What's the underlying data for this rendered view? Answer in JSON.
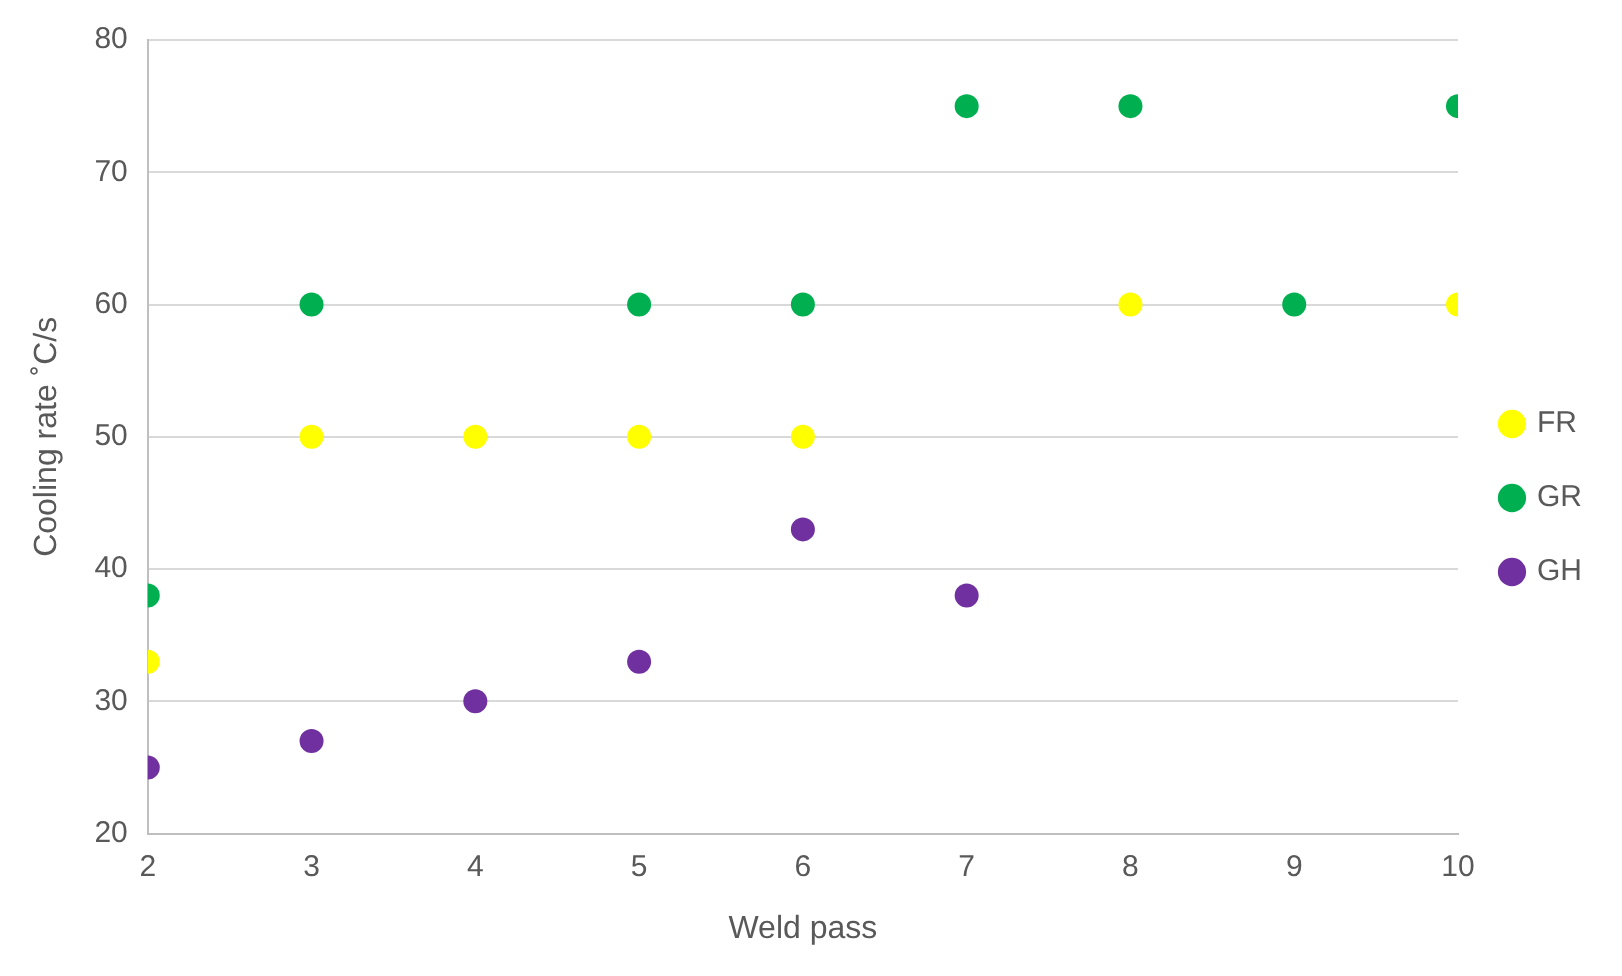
{
  "chart_data": {
    "type": "scatter",
    "xlabel": "Weld pass",
    "ylabel": "Cooling rate ˚C/s",
    "xlim": [
      2,
      10
    ],
    "xticks": [
      2,
      3,
      4,
      5,
      6,
      7,
      8,
      9,
      10
    ],
    "ylim": [
      20,
      80
    ],
    "yticks": [
      20,
      30,
      40,
      50,
      60,
      70,
      80
    ],
    "grid": "y",
    "legend": "right",
    "marker": "circle",
    "series": [
      {
        "name": "FR",
        "color": "#ffff00",
        "x": [
          2,
          3,
          4,
          5,
          6,
          8,
          10
        ],
        "values": [
          33,
          50,
          50,
          50,
          50,
          60,
          60
        ]
      },
      {
        "name": "GR",
        "color": "#00b050",
        "x": [
          2,
          3,
          5,
          6,
          7,
          8,
          9,
          10
        ],
        "values": [
          38,
          60,
          60,
          60,
          75,
          75,
          60,
          75
        ]
      },
      {
        "name": "GH",
        "color": "#7030a0",
        "x": [
          2,
          3,
          4,
          5,
          6,
          7
        ],
        "values": [
          25,
          27,
          30,
          33,
          43,
          38
        ]
      }
    ]
  }
}
